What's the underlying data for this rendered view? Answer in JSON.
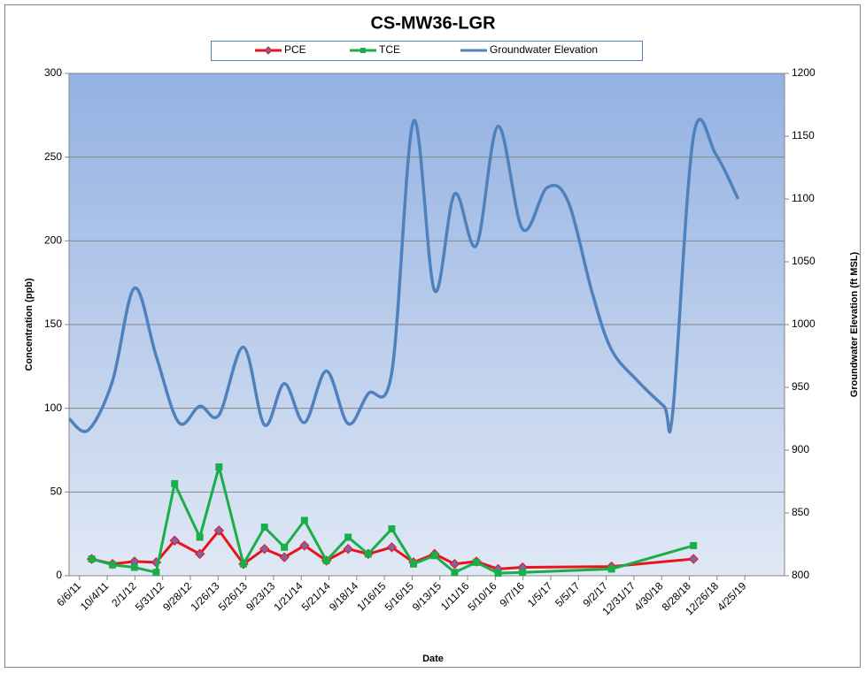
{
  "chart_data": {
    "type": "line",
    "title": "CS-MW36-LGR",
    "x_label": "Date",
    "y_label": "Concentration (ppb)",
    "y2_label": "Groundwater Elevation (ft MSL)",
    "xlim": [
      "4/22/11",
      "10/14/19"
    ],
    "xticks": [
      "6/6/11",
      "10/4/11",
      "2/1/12",
      "5/31/12",
      "9/28/12",
      "1/26/13",
      "5/26/13",
      "9/23/13",
      "1/21/14",
      "5/21/14",
      "9/18/14",
      "1/16/15",
      "5/16/15",
      "9/13/15",
      "1/11/16",
      "5/10/16",
      "9/7/16",
      "1/5/17",
      "5/5/17",
      "9/2/17",
      "12/31/17",
      "4/30/18",
      "8/28/18",
      "12/26/18",
      "4/25/19"
    ],
    "ylim": [
      0,
      300
    ],
    "yticks": [
      0,
      50,
      100,
      150,
      200,
      250,
      300
    ],
    "y2lim": [
      800,
      1200
    ],
    "y2ticks": [
      800,
      850,
      900,
      950,
      1000,
      1050,
      1100,
      1150,
      1200
    ],
    "grid": true,
    "legend": "top",
    "series": [
      {
        "name": "PCE",
        "color": "#e8141c",
        "marker": "diamond",
        "marker_color": "#8064a2",
        "smooth": false,
        "x": [
          "7/29/11",
          "10/27/11",
          "1/30/12",
          "5/3/12",
          "7/22/12",
          "11/8/12",
          "1/30/13",
          "5/16/13",
          "8/15/13",
          "11/9/13",
          "2/4/14",
          "5/10/14",
          "8/12/14",
          "11/7/14",
          "2/17/15",
          "5/22/15",
          "8/21/15",
          "11/16/15",
          "2/18/16",
          "5/22/16",
          "9/5/16",
          "9/25/17",
          "9/15/18"
        ],
        "values": [
          10,
          7,
          8.5,
          8,
          21,
          13,
          27,
          7,
          16,
          11,
          18,
          9,
          16,
          13,
          17,
          8,
          13,
          7,
          8.5,
          4,
          5,
          5.5,
          10
        ]
      },
      {
        "name": "TCE",
        "color": "#1aae4a",
        "marker": "square",
        "marker_color": "#1aae4a",
        "smooth": false,
        "x": [
          "7/29/11",
          "10/27/11",
          "1/30/12",
          "5/3/12",
          "7/22/12",
          "11/8/12",
          "1/30/13",
          "5/16/13",
          "8/15/13",
          "11/9/13",
          "2/4/14",
          "5/10/14",
          "8/12/14",
          "11/7/14",
          "2/17/15",
          "5/22/15",
          "8/21/15",
          "11/16/15",
          "2/18/16",
          "5/22/16",
          "9/5/16",
          "9/25/17",
          "9/15/18"
        ],
        "values": [
          10,
          6.5,
          5,
          2,
          55,
          23,
          65,
          7,
          29,
          17,
          33,
          9,
          23,
          13,
          28,
          7,
          12,
          2,
          8,
          1.5,
          2,
          4,
          18
        ]
      },
      {
        "name": "Groundwater Elevation",
        "color": "#4f81bd",
        "axis": "y2",
        "smooth": true,
        "x": [
          "4/22/11",
          "7/14/11",
          "10/27/11",
          "1/30/12",
          "5/3/12",
          "8/9/12",
          "11/8/12",
          "1/30/13",
          "5/16/13",
          "8/15/13",
          "11/9/13",
          "2/4/14",
          "5/10/14",
          "8/12/14",
          "11/7/14",
          "2/17/15",
          "5/22/15",
          "8/21/15",
          "11/16/15",
          "2/18/16",
          "5/22/16",
          "9/5/16",
          "12/20/16",
          "3/21/17",
          "7/4/17",
          "9/25/17",
          "1/17/18",
          "5/10/18",
          "6/17/18",
          "9/15/18",
          "12/22/18",
          "3/27/19"
        ],
        "values": [
          925,
          916,
          955,
          1029,
          975,
          922,
          935,
          928,
          982,
          920,
          953,
          922,
          963,
          921,
          945,
          962,
          1162,
          1027,
          1104,
          1063,
          1158,
          1076,
          1109,
          1098,
          1025,
          980,
          955,
          935,
          930,
          1150,
          1135,
          1100
        ]
      }
    ]
  }
}
